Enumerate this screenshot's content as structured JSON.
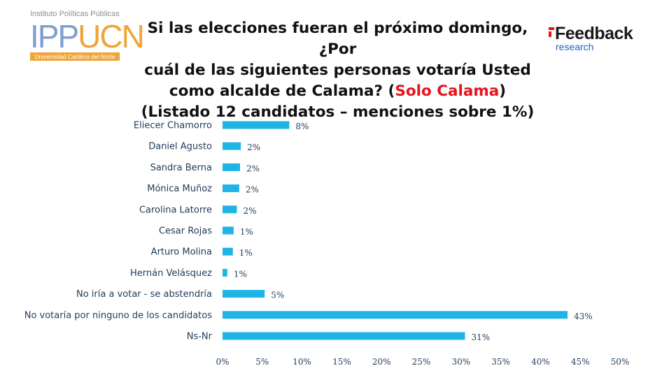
{
  "logo_ipp": {
    "institute": "Instituto Políticas Públicas",
    "ipp": "IPP",
    "ucn": "UCN",
    "university": "Universidad Católica del Norte"
  },
  "title": {
    "line1": "Si las elecciones fueran el próximo domingo, ¿Por",
    "line2": "cuál de las siguientes personas votaría Usted",
    "line3a": "como alcalde de Calama? (",
    "line3_highlight": "Solo Calama",
    "line3b": ")",
    "line4": "(Listado 12 candidatos – menciones sobre 1%)"
  },
  "logo_feedback": {
    "word": "Feedback",
    "sub": "research"
  },
  "colors": {
    "bar": "#1eb4e6",
    "text": "#1f3b5a",
    "highlight": "#e5141b"
  },
  "chart_data": {
    "type": "bar",
    "orientation": "horizontal",
    "title": "Si las elecciones fueran el próximo domingo, ¿Por cuál de las siguientes personas votaría Usted como alcalde de Calama? (Solo Calama) (Listado 12 candidatos – menciones sobre 1%)",
    "categories": [
      "Eliecer Chamorro",
      "Daniel Agusto",
      "Sandra Berna",
      "Mónica Muñoz",
      "Carolina Latorre",
      "Cesar Rojas",
      "Arturo Molina",
      "Hernán Velásquez",
      "No iría a votar - se abstendría",
      "No votaría por ninguno de los candidatos",
      "Ns-Nr"
    ],
    "values": [
      8.4,
      2.3,
      2.2,
      2.1,
      1.8,
      1.4,
      1.3,
      0.6,
      5.3,
      43.4,
      30.5
    ],
    "labels": [
      "8%",
      "2%",
      "2%",
      "2%",
      "2%",
      "1%",
      "1%",
      "1%",
      "5%",
      "43%",
      "31%"
    ],
    "xlim": [
      0,
      50
    ],
    "xticks": [
      "0%",
      "5%",
      "10%",
      "15%",
      "20%",
      "25%",
      "30%",
      "35%",
      "40%",
      "45%",
      "50%"
    ],
    "xlabel": "",
    "ylabel": "",
    "grid": false,
    "legend": "none"
  }
}
